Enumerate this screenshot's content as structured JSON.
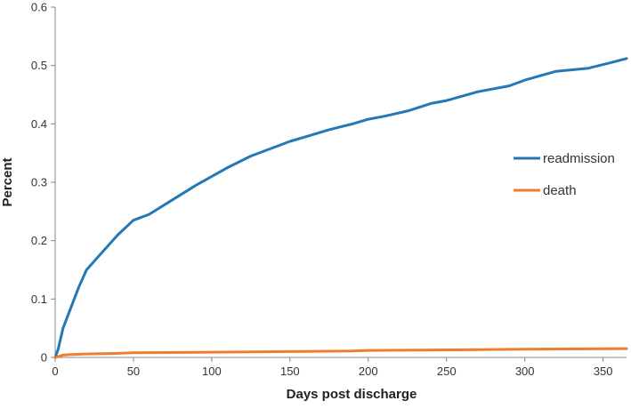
{
  "chart_data": {
    "type": "line",
    "title": "",
    "xlabel": "Days post discharge",
    "ylabel": "Percent",
    "xlim": [
      0,
      365
    ],
    "ylim": [
      0,
      0.6
    ],
    "xticks": [
      0,
      50,
      100,
      150,
      200,
      250,
      300,
      350
    ],
    "yticks": [
      0,
      0.1,
      0.2,
      0.3,
      0.4,
      0.5,
      0.6
    ],
    "xtick_labels": [
      "0",
      "50",
      "100",
      "150",
      "200",
      "250",
      "300",
      "350"
    ],
    "ytick_labels": [
      "0",
      "0.1",
      "0.2",
      "0.3",
      "0.4",
      "0.5",
      "0.6"
    ],
    "grid": false,
    "legend": "right",
    "series": [
      {
        "name": "readmission",
        "color": "#2478b4",
        "x": [
          0,
          2,
          5,
          10,
          15,
          20,
          25,
          30,
          40,
          50,
          60,
          75,
          90,
          100,
          110,
          125,
          140,
          150,
          160,
          175,
          190,
          200,
          210,
          225,
          240,
          250,
          270,
          290,
          300,
          320,
          340,
          355,
          365
        ],
        "y": [
          0,
          0.015,
          0.05,
          0.085,
          0.12,
          0.15,
          0.165,
          0.18,
          0.21,
          0.235,
          0.245,
          0.27,
          0.295,
          0.31,
          0.325,
          0.345,
          0.36,
          0.37,
          0.378,
          0.39,
          0.4,
          0.408,
          0.413,
          0.422,
          0.435,
          0.44,
          0.455,
          0.465,
          0.475,
          0.49,
          0.495,
          0.505,
          0.512
        ]
      },
      {
        "name": "death",
        "color": "#ed7d31",
        "x": [
          0,
          5,
          10,
          20,
          40,
          50,
          100,
          150,
          190,
          200,
          250,
          300,
          365
        ],
        "y": [
          0,
          0.004,
          0.005,
          0.006,
          0.007,
          0.008,
          0.009,
          0.01,
          0.011,
          0.012,
          0.013,
          0.014,
          0.015
        ]
      }
    ]
  }
}
